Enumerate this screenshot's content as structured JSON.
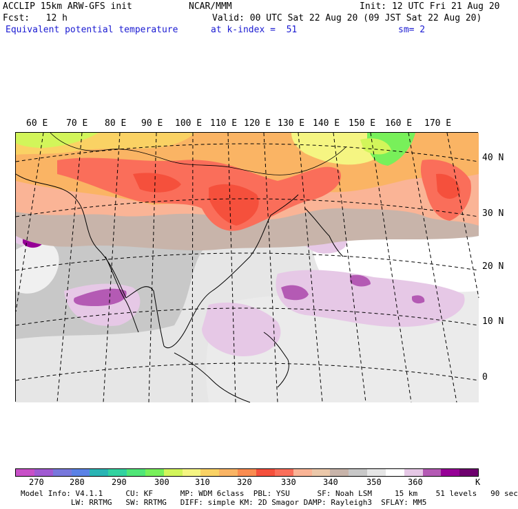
{
  "header": {
    "model": "ACCLIP 15km ARW-GFS init",
    "org": "NCAR/MMM",
    "init": "Init: 12 UTC Fri 21 Aug 20",
    "fcst": "Fcst:   12 h",
    "valid": "Valid: 00 UTC Sat 22 Aug 20 (09 JST Sat 22 Aug 20)",
    "field": "Equivalent potential temperature",
    "level": "at k-index =  51",
    "smooth": "sm= 2"
  },
  "lon_labels": [
    "60 E",
    "70 E",
    "80 E",
    "90 E",
    "100 E",
    "110 E",
    "120 E",
    "130 E",
    "140 E",
    "150 E",
    "160 E",
    "170 E"
  ],
  "lat_labels": [
    "40 N",
    "30 N",
    "20 N",
    "10 N",
    "0"
  ],
  "colorbar": {
    "colors": [
      "#c850c8",
      "#a05ad2",
      "#7878dc",
      "#5a82e6",
      "#2ab4b4",
      "#32d2a0",
      "#50e678",
      "#78f05a",
      "#d2f55a",
      "#f5f582",
      "#fad264",
      "#fab464",
      "#fa8c50",
      "#f5503c",
      "#fa6e5a",
      "#fab496",
      "#ebc8aa",
      "#c8b4aa",
      "#c8c8c8",
      "#e6e6e6",
      "#ffffff",
      "#e6c8e6",
      "#b45ab4",
      "#960096",
      "#6e006e"
    ],
    "labels": [
      "270",
      "280",
      "290",
      "300",
      "310",
      "320",
      "330",
      "340",
      "350",
      "360"
    ],
    "unit": "K"
  },
  "model_info": {
    "line1": "Model Info: V4.1.1     CU: KF      MP: WDM 6class  PBL: YSU      SF: Noah LSM     15 km    51 levels   90 sec",
    "line2": "           LW: RRTMG   SW: RRTMG   DIFF: simple KM: 2D Smagor DAMP: Rayleigh3  SFLAY: MM5"
  }
}
